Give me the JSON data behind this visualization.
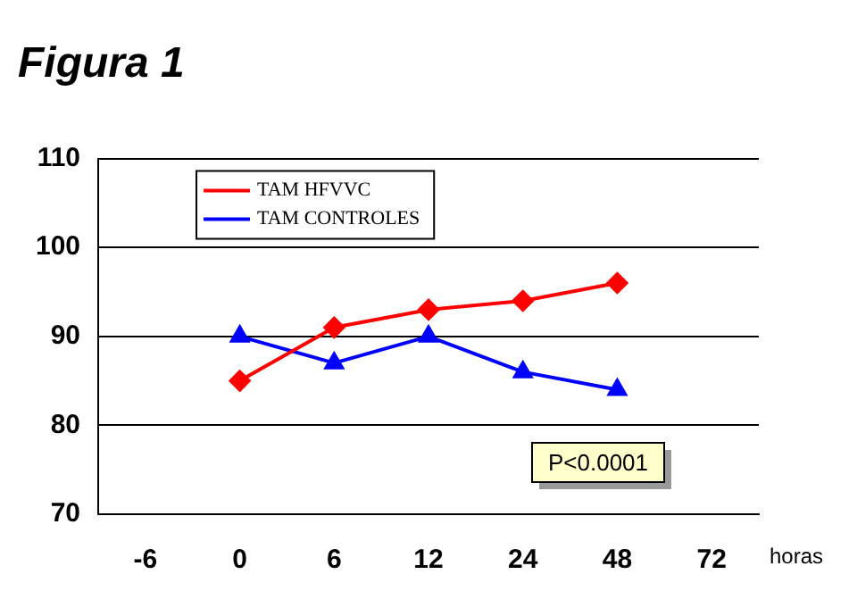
{
  "chart_data": {
    "type": "line",
    "title": "Figura 1",
    "xlabel": "horas",
    "categories": [
      "-6",
      "0",
      "6",
      "12",
      "24",
      "48",
      "72"
    ],
    "series": [
      {
        "name": "TAM HFVVC",
        "color": "#ff0000",
        "marker": "diamond",
        "values": [
          null,
          85,
          91,
          93,
          94,
          96,
          null
        ]
      },
      {
        "name": "TAM CONTROLES",
        "color": "#0000ff",
        "marker": "triangle",
        "values": [
          null,
          90,
          87,
          90,
          86,
          84,
          null
        ]
      }
    ],
    "ylim": [
      70,
      110
    ],
    "yticks": [
      70,
      80,
      90,
      100,
      110
    ],
    "grid": "y",
    "legend": "top left",
    "line_style": "solid",
    "annotations": [
      "P<0.0001"
    ]
  }
}
